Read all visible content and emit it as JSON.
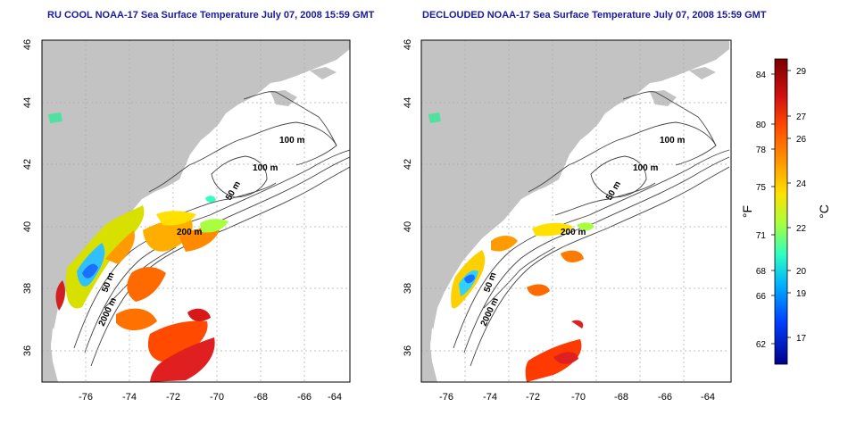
{
  "panels": [
    {
      "title": "RU COOL NOAA-17 Sea Surface Temperature July 07, 2008 15:59 GMT",
      "contour_labels": [
        "100 m",
        "100 m",
        "50 m",
        "200 m",
        "50 m",
        "2000 m"
      ]
    },
    {
      "title": "DECLOUDED NOAA-17 Sea Surface Temperature July 07, 2008 15:59 GMT",
      "contour_labels": [
        "100 m",
        "100 m",
        "50 m",
        "200 m",
        "50 m",
        "2000 m"
      ]
    }
  ],
  "axes": {
    "x_ticks": [
      "-76",
      "-74",
      "-72",
      "-70",
      "-68",
      "-66",
      "-64"
    ],
    "y_ticks": [
      "36",
      "38",
      "40",
      "42",
      "44",
      "46"
    ],
    "lon_range": [
      -77,
      -63
    ],
    "lat_range": [
      35,
      46
    ]
  },
  "colorbar": {
    "f_unit": "°F",
    "c_unit": "°C",
    "f_ticks": [
      "84",
      "80",
      "78",
      "75",
      "71",
      "68",
      "66",
      "62"
    ],
    "c_ticks": [
      "29",
      "27",
      "26",
      "24",
      "22",
      "20",
      "19",
      "17"
    ],
    "colors": [
      "#7a0000",
      "#d01010",
      "#ff4a00",
      "#ff9a00",
      "#ffe000",
      "#a8ff40",
      "#30ffc0",
      "#00b0ff",
      "#0040ff",
      "#00008a"
    ]
  }
}
